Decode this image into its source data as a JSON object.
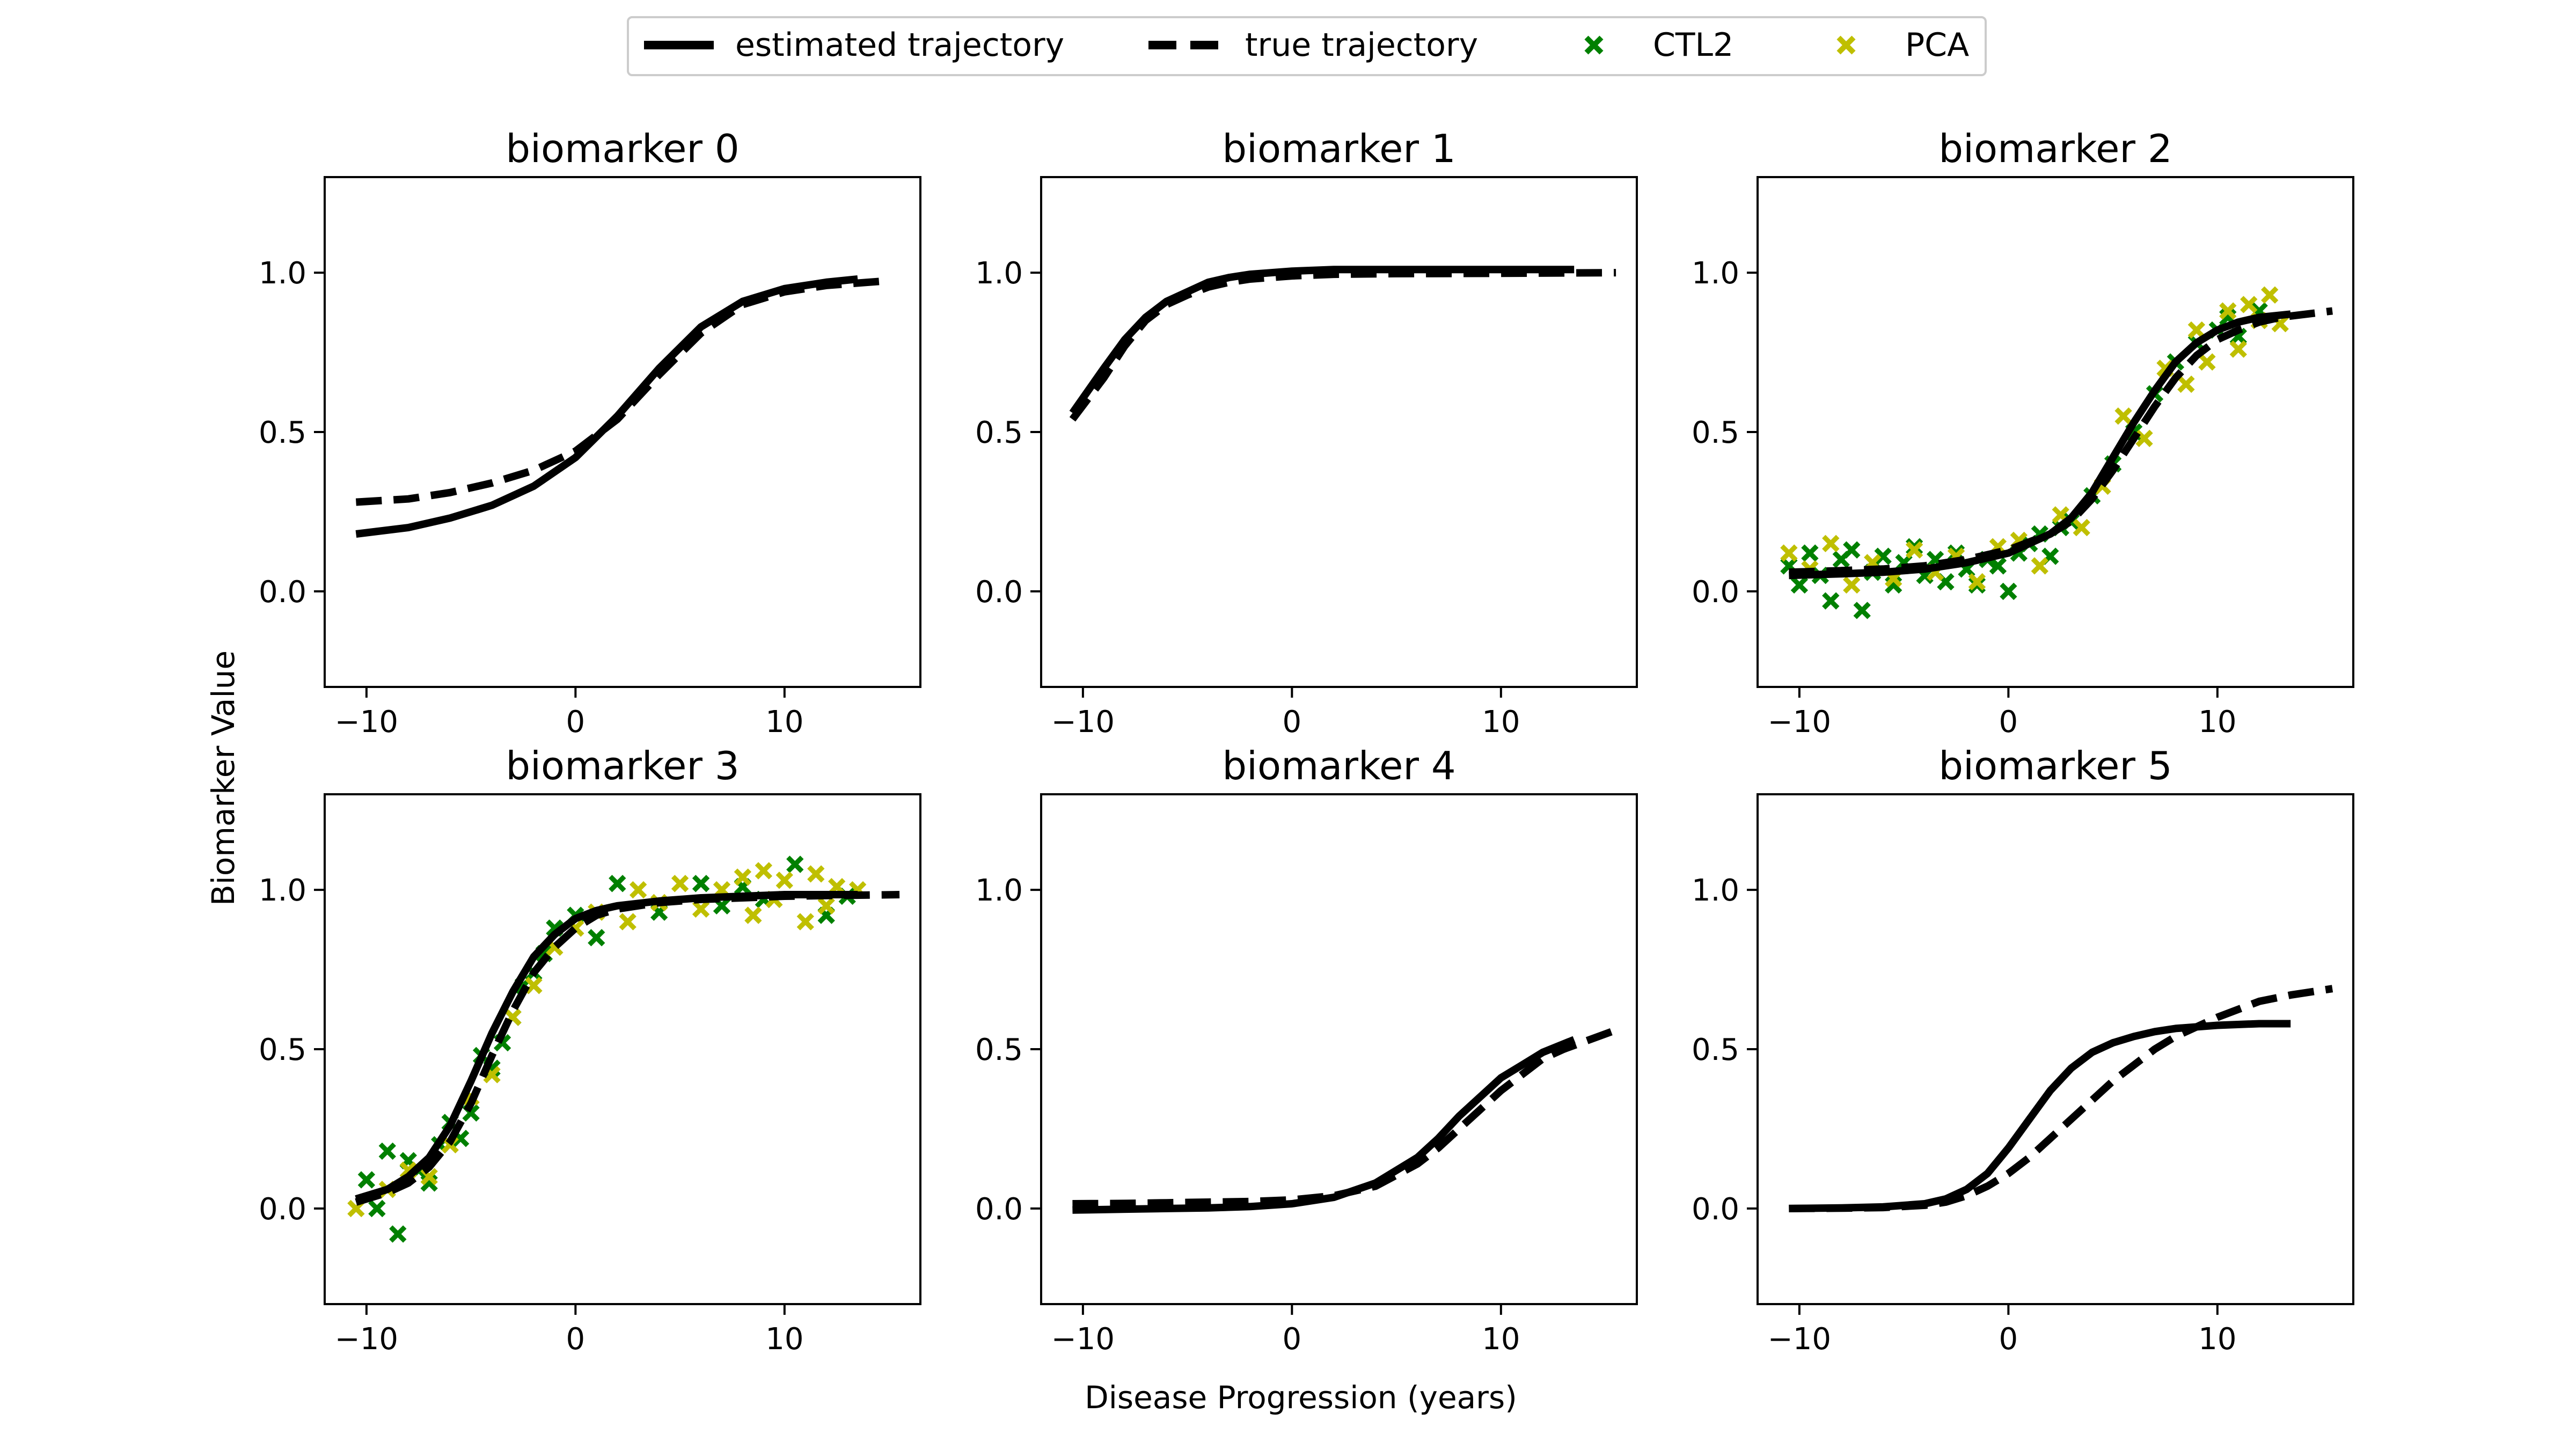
{
  "figure": {
    "xlabel": "Disease Progression (years)",
    "ylabel": "Biomarker Value"
  },
  "legend": {
    "placement": "top-center",
    "items": [
      {
        "label": "estimated trajectory",
        "kind": "solid-line",
        "color": "#000000"
      },
      {
        "label": "true trajectory",
        "kind": "dashed-line",
        "color": "#000000"
      },
      {
        "label": "CTL2",
        "kind": "x-marker",
        "color": "#008000"
      },
      {
        "label": "PCA",
        "kind": "x-marker",
        "color": "#bfbf00"
      }
    ]
  },
  "colors": {
    "CTL2": "#008000",
    "PCA": "#bfbf00",
    "lines": "#000000"
  },
  "chart_data": [
    {
      "type": "line",
      "title": "biomarker 0",
      "xlim": [
        -12,
        16.5
      ],
      "ylim": [
        -0.3,
        1.3
      ],
      "xticks": [
        -10,
        0,
        10
      ],
      "xticklabels": [
        "−10",
        "0",
        "10"
      ],
      "yticks": [
        0.0,
        0.5,
        1.0
      ],
      "yticklabels": [
        "0.0",
        "0.5",
        "1.0"
      ],
      "series": [
        {
          "name": "estimated trajectory",
          "style": "solid",
          "x": [
            -10.5,
            -8,
            -6,
            -4,
            -2,
            0,
            2,
            4,
            6,
            8,
            10,
            12,
            13.5
          ],
          "y": [
            0.18,
            0.2,
            0.23,
            0.27,
            0.33,
            0.42,
            0.55,
            0.7,
            0.83,
            0.91,
            0.95,
            0.97,
            0.98
          ]
        },
        {
          "name": "true trajectory",
          "style": "dashed",
          "x": [
            -10.5,
            -8,
            -6,
            -4,
            -2,
            0,
            2,
            4,
            6,
            8,
            10,
            12,
            15
          ],
          "y": [
            0.28,
            0.29,
            0.31,
            0.34,
            0.38,
            0.44,
            0.54,
            0.68,
            0.81,
            0.9,
            0.94,
            0.96,
            0.975
          ]
        }
      ]
    },
    {
      "type": "line",
      "title": "biomarker 1",
      "xlim": [
        -12,
        16.5
      ],
      "ylim": [
        -0.3,
        1.3
      ],
      "xticks": [
        -10,
        0,
        10
      ],
      "xticklabels": [
        "−10",
        "0",
        "10"
      ],
      "yticks": [
        0.0,
        0.5,
        1.0
      ],
      "yticklabels": [
        "0.0",
        "0.5",
        "1.0"
      ],
      "series": [
        {
          "name": "estimated trajectory",
          "style": "solid",
          "x": [
            -10.5,
            -9,
            -8,
            -7,
            -6,
            -5,
            -4,
            -3,
            -2,
            0,
            2,
            5,
            10,
            13.5
          ],
          "y": [
            0.56,
            0.7,
            0.79,
            0.86,
            0.91,
            0.94,
            0.97,
            0.985,
            0.995,
            1.005,
            1.01,
            1.01,
            1.01,
            1.01
          ]
        },
        {
          "name": "true trajectory",
          "style": "dashed",
          "x": [
            -10.5,
            -9,
            -8,
            -7,
            -6,
            -5,
            -4,
            -3,
            -2,
            0,
            2,
            5,
            10,
            15.5
          ],
          "y": [
            0.54,
            0.67,
            0.77,
            0.85,
            0.9,
            0.93,
            0.955,
            0.97,
            0.98,
            0.99,
            0.995,
            0.997,
            0.998,
            1.0
          ]
        }
      ]
    },
    {
      "type": "scatter",
      "title": "biomarker 2",
      "xlim": [
        -12,
        16.5
      ],
      "ylim": [
        -0.3,
        1.3
      ],
      "xticks": [
        -10,
        0,
        10
      ],
      "xticklabels": [
        "−10",
        "0",
        "10"
      ],
      "yticks": [
        0.0,
        0.5,
        1.0
      ],
      "yticklabels": [
        "0.0",
        "0.5",
        "1.0"
      ],
      "series": [
        {
          "name": "estimated trajectory",
          "style": "solid",
          "x": [
            -10.5,
            -8,
            -6,
            -4,
            -2,
            0,
            2,
            3,
            4,
            5,
            6,
            7,
            8,
            9,
            10,
            11,
            12,
            13.5
          ],
          "y": [
            0.05,
            0.055,
            0.06,
            0.07,
            0.09,
            0.12,
            0.18,
            0.23,
            0.31,
            0.42,
            0.53,
            0.63,
            0.72,
            0.78,
            0.82,
            0.845,
            0.86,
            0.87
          ]
        },
        {
          "name": "true trajectory",
          "style": "dashed",
          "x": [
            -10.5,
            -8,
            -6,
            -4,
            -2,
            0,
            2,
            3,
            4,
            5,
            6,
            7,
            8,
            9,
            10,
            11,
            12,
            13,
            15.5
          ],
          "y": [
            0.06,
            0.065,
            0.07,
            0.08,
            0.1,
            0.13,
            0.18,
            0.22,
            0.29,
            0.38,
            0.48,
            0.58,
            0.67,
            0.74,
            0.79,
            0.82,
            0.845,
            0.86,
            0.88
          ]
        },
        {
          "name": "CTL2",
          "style": "markers",
          "color": "#008000",
          "x": [
            -10.5,
            -10.0,
            -9.5,
            -9.0,
            -8.5,
            -8.0,
            -7.5,
            -7.0,
            -6.5,
            -6.0,
            -5.5,
            -5.0,
            -4.5,
            -4.0,
            -3.5,
            -3.0,
            -2.5,
            -2.0,
            -1.5,
            -1.0,
            -0.5,
            0.0,
            0.5,
            1.0,
            1.5,
            2.0,
            2.5,
            3.0,
            4.0,
            5.0,
            6.0,
            7.0,
            8.0,
            9.0,
            10.0,
            10.5,
            11.0,
            12.0
          ],
          "y": [
            0.08,
            0.02,
            0.12,
            0.05,
            -0.03,
            0.1,
            0.13,
            -0.06,
            0.06,
            0.11,
            0.02,
            0.09,
            0.14,
            0.05,
            0.1,
            0.03,
            0.12,
            0.07,
            0.02,
            0.1,
            0.08,
            0.0,
            0.12,
            0.15,
            0.18,
            0.11,
            0.2,
            0.22,
            0.3,
            0.4,
            0.5,
            0.62,
            0.72,
            0.78,
            0.82,
            0.86,
            0.8,
            0.88
          ]
        },
        {
          "name": "PCA",
          "style": "markers",
          "color": "#bfbf00",
          "x": [
            -10.5,
            -9.5,
            -8.5,
            -7.5,
            -6.5,
            -5.5,
            -4.5,
            -3.5,
            -2.5,
            -1.5,
            -0.5,
            0.5,
            1.5,
            2.5,
            3.5,
            4.5,
            5.5,
            6.5,
            7.5,
            8.5,
            9.0,
            9.5,
            10.5,
            11.0,
            11.5,
            12.0,
            12.5,
            13.0
          ],
          "y": [
            0.12,
            0.07,
            0.15,
            0.02,
            0.09,
            0.04,
            0.13,
            0.06,
            0.11,
            0.03,
            0.14,
            0.16,
            0.08,
            0.24,
            0.2,
            0.33,
            0.55,
            0.48,
            0.7,
            0.65,
            0.82,
            0.72,
            0.88,
            0.76,
            0.9,
            0.85,
            0.93,
            0.84
          ]
        }
      ]
    },
    {
      "type": "scatter",
      "title": "biomarker 3",
      "xlim": [
        -12,
        16.5
      ],
      "ylim": [
        -0.3,
        1.3
      ],
      "xticks": [
        -10,
        0,
        10
      ],
      "xticklabels": [
        "−10",
        "0",
        "10"
      ],
      "yticks": [
        0.0,
        0.5,
        1.0
      ],
      "yticklabels": [
        "0.0",
        "0.5",
        "1.0"
      ],
      "series": [
        {
          "name": "estimated trajectory",
          "style": "solid",
          "x": [
            -10.5,
            -9,
            -8,
            -7,
            -6,
            -5,
            -4,
            -3,
            -2,
            -1,
            0,
            1,
            2,
            4,
            6,
            8,
            10,
            12,
            13.5
          ],
          "y": [
            0.03,
            0.06,
            0.1,
            0.16,
            0.26,
            0.4,
            0.55,
            0.68,
            0.79,
            0.86,
            0.91,
            0.935,
            0.95,
            0.965,
            0.975,
            0.98,
            0.985,
            0.985,
            0.985
          ]
        },
        {
          "name": "true trajectory",
          "style": "dashed",
          "x": [
            -10.5,
            -9,
            -8,
            -7,
            -6,
            -5,
            -4,
            -3,
            -2,
            -1,
            0,
            1,
            2,
            4,
            6,
            8,
            10,
            12,
            15.5
          ],
          "y": [
            0.02,
            0.05,
            0.08,
            0.13,
            0.21,
            0.33,
            0.48,
            0.62,
            0.74,
            0.82,
            0.88,
            0.92,
            0.94,
            0.96,
            0.97,
            0.975,
            0.98,
            0.982,
            0.985
          ]
        },
        {
          "name": "CTL2",
          "style": "markers",
          "color": "#008000",
          "x": [
            -10.0,
            -9.5,
            -9.0,
            -8.5,
            -8.0,
            -7.5,
            -7.0,
            -6.5,
            -6.0,
            -5.5,
            -5.0,
            -4.5,
            -4.0,
            -3.5,
            -3.0,
            -2.5,
            -2.0,
            -1.5,
            -1.0,
            0.0,
            1.0,
            2.0,
            4.0,
            6.0,
            7.0,
            8.0,
            9.0,
            10.5,
            12.0,
            13.0
          ],
          "y": [
            0.09,
            0.0,
            0.18,
            -0.08,
            0.15,
            0.12,
            0.08,
            0.2,
            0.27,
            0.22,
            0.3,
            0.48,
            0.44,
            0.52,
            0.6,
            0.7,
            0.74,
            0.8,
            0.88,
            0.92,
            0.85,
            1.02,
            0.93,
            1.02,
            0.95,
            1.01,
            0.97,
            1.08,
            0.92,
            0.98
          ]
        },
        {
          "name": "PCA",
          "style": "markers",
          "color": "#bfbf00",
          "x": [
            -10.5,
            -9.0,
            -8.0,
            -7.0,
            -6.0,
            -5.0,
            -4.0,
            -3.0,
            -2.0,
            -1.0,
            0.0,
            1.0,
            2.5,
            3.0,
            4.0,
            5.0,
            6.0,
            7.0,
            8.0,
            8.5,
            9.0,
            9.5,
            10.0,
            11.0,
            11.5,
            12.0,
            12.5,
            13.5
          ],
          "y": [
            0.0,
            0.06,
            0.12,
            0.1,
            0.2,
            0.35,
            0.42,
            0.6,
            0.7,
            0.82,
            0.88,
            0.93,
            0.9,
            1.0,
            0.96,
            1.02,
            0.94,
            1.0,
            1.04,
            0.92,
            1.06,
            0.97,
            1.03,
            0.9,
            1.05,
            0.95,
            1.01,
            1.0
          ]
        }
      ]
    },
    {
      "type": "line",
      "title": "biomarker 4",
      "xlim": [
        -12,
        16.5
      ],
      "ylim": [
        -0.3,
        1.3
      ],
      "xticks": [
        -10,
        0,
        10
      ],
      "xticklabels": [
        "−10",
        "0",
        "10"
      ],
      "yticks": [
        0.0,
        0.5,
        1.0
      ],
      "yticklabels": [
        "0.0",
        "0.5",
        "1.0"
      ],
      "series": [
        {
          "name": "estimated trajectory",
          "style": "solid",
          "x": [
            -10.5,
            -8,
            -6,
            -4,
            -2,
            0,
            2,
            4,
            6,
            7,
            8,
            9,
            10,
            11,
            12,
            13.5
          ],
          "y": [
            -0.005,
            -0.002,
            0.0,
            0.002,
            0.006,
            0.015,
            0.035,
            0.08,
            0.16,
            0.22,
            0.29,
            0.35,
            0.41,
            0.45,
            0.49,
            0.53
          ]
        },
        {
          "name": "true trajectory",
          "style": "dashed",
          "x": [
            -10.5,
            -8,
            -6,
            -4,
            -2,
            0,
            2,
            4,
            6,
            7,
            8,
            9,
            10,
            11,
            12,
            13,
            15.5
          ],
          "y": [
            0.015,
            0.016,
            0.018,
            0.02,
            0.022,
            0.027,
            0.04,
            0.07,
            0.14,
            0.19,
            0.25,
            0.31,
            0.37,
            0.42,
            0.47,
            0.5,
            0.56
          ]
        }
      ]
    },
    {
      "type": "line",
      "title": "biomarker 5",
      "xlim": [
        -12,
        16.5
      ],
      "ylim": [
        -0.3,
        1.3
      ],
      "xticks": [
        -10,
        0,
        10
      ],
      "xticklabels": [
        "−10",
        "0",
        "10"
      ],
      "yticks": [
        0.0,
        0.5,
        1.0
      ],
      "yticklabels": [
        "0.0",
        "0.5",
        "1.0"
      ],
      "series": [
        {
          "name": "estimated trajectory",
          "style": "solid",
          "x": [
            -10.5,
            -8,
            -6,
            -4,
            -3,
            -2,
            -1,
            0,
            1,
            2,
            3,
            4,
            5,
            6,
            7,
            8,
            10,
            12,
            13.5
          ],
          "y": [
            0.0,
            0.002,
            0.005,
            0.015,
            0.03,
            0.06,
            0.11,
            0.19,
            0.28,
            0.37,
            0.44,
            0.49,
            0.52,
            0.54,
            0.555,
            0.565,
            0.575,
            0.58,
            0.58
          ]
        },
        {
          "name": "true trajectory",
          "style": "dashed",
          "x": [
            -10.5,
            -8,
            -6,
            -4,
            -3,
            -2,
            -1,
            0,
            1,
            2,
            3,
            4,
            5,
            6,
            7,
            8,
            10,
            12,
            13.5,
            15.5
          ],
          "y": [
            0.0,
            0.001,
            0.003,
            0.01,
            0.02,
            0.04,
            0.07,
            0.11,
            0.16,
            0.22,
            0.28,
            0.34,
            0.4,
            0.45,
            0.5,
            0.54,
            0.6,
            0.65,
            0.67,
            0.69
          ]
        }
      ]
    }
  ]
}
